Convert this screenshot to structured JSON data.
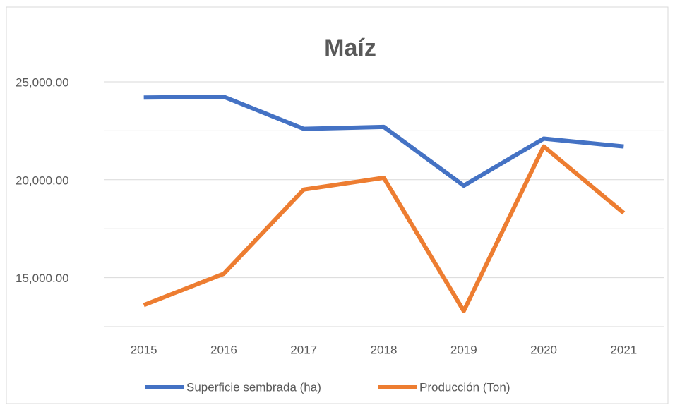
{
  "chart_data": {
    "type": "line",
    "title": "Maíz",
    "categories": [
      "2015",
      "2016",
      "2017",
      "2018",
      "2019",
      "2020",
      "2021"
    ],
    "series": [
      {
        "name": "Superficie sembrada (ha)",
        "color": "#4472c4",
        "values": [
          24200,
          24240,
          22600,
          22700,
          19700,
          22100,
          21700
        ]
      },
      {
        "name": "Producción (Ton)",
        "color": "#ed7d31",
        "values": [
          13600,
          15200,
          19500,
          20100,
          13300,
          21700,
          18300
        ]
      }
    ],
    "ylim": [
      12500,
      25000
    ],
    "yticks": [
      {
        "value": 15000,
        "label": "15,000.00"
      },
      {
        "value": 20000,
        "label": "20,000.00"
      },
      {
        "value": 25000,
        "label": "25,000.00"
      }
    ],
    "minor_yticks": [
      12500,
      17500,
      22500
    ],
    "grid": true,
    "legend": "bottom"
  }
}
